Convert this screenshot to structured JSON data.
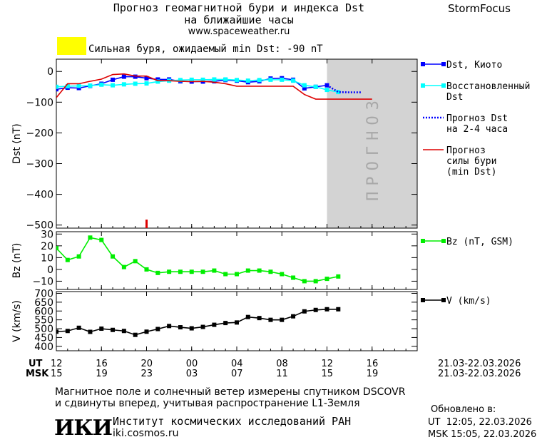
{
  "header": {
    "title_line1": "Прогноз геомагнитной бури и индекса Dst",
    "title_line2": "на ближайшие часы",
    "site": "www.spaceweather.ru",
    "brand": "StormFocus",
    "alert_text": "Сильная буря, ожидаемый min Dst: -90 nT",
    "alert_color": "#ffff00"
  },
  "footer": {
    "note_line1": "Магнитное поле и солнечный ветер измерены спутником DSCOVR",
    "note_line2": "и сдвинуты вперед, учитывая распространение L1-Земля",
    "institute": "Институт космических исследований РАН",
    "institute_url": "iki.cosmos.ru",
    "logo_text": "ИКИ",
    "updated_label": "Обновлено в:",
    "updated_ut": "UT  12:05, 22.03.2026",
    "updated_msk": "MSK 15:05, 22.03.2026"
  },
  "time_axis": {
    "ut_label": "UT",
    "msk_label": "MSK",
    "ut_ticks": [
      "12",
      "16",
      "20",
      "00",
      "04",
      "08",
      "12",
      "16"
    ],
    "msk_ticks": [
      "15",
      "19",
      "23",
      "03",
      "07",
      "11",
      "15",
      "19"
    ],
    "date_range": "21.03-22.03.2026"
  },
  "chart_data": [
    {
      "type": "line",
      "panel": "dst",
      "ylabel": "Dst (nT)",
      "ylim": [
        -510,
        40
      ],
      "yticks": [
        "0",
        "−100",
        "−200",
        "−300",
        "−400",
        "−500"
      ],
      "forecast_label": "ПРОГНОЗ",
      "forecast_x": [
        12.0,
        13.9
      ],
      "x_unit": "hours since 12 UT 21.03.2026",
      "storm_marker_x": 8.0,
      "series": [
        {
          "name": "Dst, Киото",
          "color": "#0000ff",
          "x": [
            0,
            1,
            2,
            3,
            4,
            5,
            6,
            7,
            8,
            9,
            10,
            11,
            12,
            13,
            14,
            15,
            16,
            17,
            18,
            19,
            20,
            21,
            22,
            23,
            24
          ],
          "y": [
            -58,
            -53,
            -54,
            -47,
            -40,
            -27,
            -17,
            -17,
            -22,
            -26,
            -26,
            -32,
            -33,
            -33,
            -32,
            -28,
            -30,
            -35,
            -32,
            -23,
            -22,
            -27,
            -55,
            -50,
            -45
          ]
        },
        {
          "name": "Восстановленный Dst",
          "color": "#00ffff",
          "x": [
            0,
            1,
            2,
            3,
            4,
            5,
            6,
            7,
            8,
            9,
            10,
            11,
            12,
            13,
            14,
            15,
            16,
            17,
            18,
            19,
            20,
            21,
            22,
            23,
            24,
            25
          ],
          "y": [
            -50,
            -48,
            -47,
            -46,
            -43,
            -45,
            -42,
            -40,
            -39,
            -33,
            -30,
            -28,
            -27,
            -27,
            -26,
            -26,
            -28,
            -30,
            -28,
            -27,
            -27,
            -30,
            -45,
            -50,
            -60,
            -67
          ]
        },
        {
          "name": "Прогноз Dst на 2-4 часа",
          "color": "#0000ff",
          "dashed": true,
          "x": [
            24,
            25,
            26,
            27
          ],
          "y": [
            -45,
            -67,
            -68,
            -68
          ]
        },
        {
          "name": "Прогноз силы бури (min Dst)",
          "color": "#dd0000",
          "x": [
            0,
            1,
            2,
            3,
            4,
            5,
            6,
            7,
            8,
            9,
            10,
            11,
            12,
            13,
            14,
            15,
            16,
            17,
            18,
            19,
            20,
            21,
            22,
            23,
            24,
            25,
            26,
            27,
            28
          ],
          "y": [
            -85,
            -40,
            -40,
            -32,
            -25,
            -10,
            -8,
            -15,
            -15,
            -30,
            -30,
            -32,
            -33,
            -32,
            -35,
            -40,
            -48,
            -48,
            -48,
            -48,
            -48,
            -48,
            -75,
            -90,
            -90,
            -90,
            -90,
            -90,
            -90
          ]
        }
      ]
    },
    {
      "type": "line",
      "panel": "bz",
      "ylabel": "Bz (nT)",
      "ylim": [
        -17,
        32
      ],
      "yticks": [
        "30",
        "20",
        "10",
        "0",
        "−10"
      ],
      "series": [
        {
          "name": "Bz (nT, GSM)",
          "color": "#00ee00",
          "x": [
            0,
            1,
            2,
            3,
            4,
            5,
            6,
            7,
            8,
            9,
            10,
            11,
            12,
            13,
            14,
            15,
            16,
            17,
            18,
            19,
            20,
            21,
            22,
            23,
            24,
            25
          ],
          "y": [
            18,
            8,
            11,
            27,
            25,
            11,
            2,
            7,
            0,
            -3,
            -2,
            -2,
            -2,
            -2,
            -1,
            -4,
            -4,
            -1,
            -1,
            -2,
            -4,
            -7,
            -10,
            -10,
            -8,
            -6
          ]
        }
      ]
    },
    {
      "type": "line",
      "panel": "v",
      "ylabel": "V (km/s)",
      "ylim": [
        375,
        710
      ],
      "yticks": [
        "700",
        "650",
        "600",
        "550",
        "500",
        "450",
        "400"
      ],
      "series": [
        {
          "name": "V (km/s)",
          "color": "#000000",
          "x": [
            0,
            1,
            2,
            3,
            4,
            5,
            6,
            7,
            8,
            9,
            10,
            11,
            12,
            13,
            14,
            15,
            16,
            17,
            18,
            19,
            20,
            21,
            22,
            23,
            24,
            25
          ],
          "y": [
            483,
            487,
            505,
            482,
            500,
            493,
            487,
            465,
            483,
            498,
            515,
            508,
            502,
            510,
            522,
            532,
            535,
            566,
            560,
            550,
            550,
            570,
            598,
            606,
            610,
            610
          ]
        }
      ]
    }
  ]
}
